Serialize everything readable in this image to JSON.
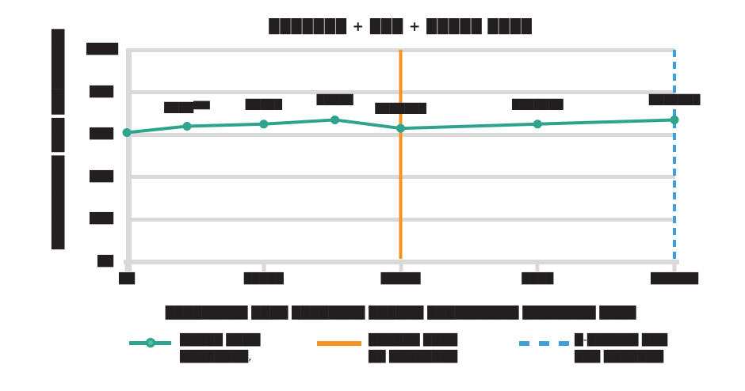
{
  "title": "███████ + ███ + █████ ████",
  "colors": {
    "teal": "#2ea48e",
    "orange": "#f6921e",
    "blue": "#3e9fdb",
    "text": "#231f20",
    "grid": "#d9d9d9"
  },
  "y_axis": {
    "label": "███████████ ████ ██████████",
    "tick_values": [
      100,
      80,
      60,
      40,
      20,
      0
    ],
    "tick_labels": [
      "████",
      "███",
      "███",
      "███",
      "███",
      "██"
    ]
  },
  "x_axis": {
    "label": "█████████ ████ ████████ ██████ ██████████ ████████ ████",
    "tick_values": [
      0,
      25,
      50,
      75,
      100
    ],
    "tick_labels": [
      "██",
      "█████",
      "█████",
      "████",
      "██████"
    ]
  },
  "chart_data": {
    "type": "line",
    "xlim": [
      0,
      100
    ],
    "ylim": [
      0,
      100
    ],
    "grid": "horizontal",
    "legend_position": "bottom",
    "series": [
      {
        "name": "█████ ████ ████████",
        "x": [
          0,
          11,
          25,
          38,
          50,
          75,
          100
        ],
        "y": [
          61,
          64,
          65,
          67,
          63,
          65,
          67
        ],
        "marker": "circle"
      }
    ],
    "vlines": [
      {
        "x": 50,
        "color": "orange",
        "style": "solid"
      },
      {
        "x": 100,
        "color": "blue",
        "style": "dashed"
      }
    ],
    "point_labels": [
      {
        "x": 11,
        "text": "████",
        "sup": "███"
      },
      {
        "x": 25,
        "text": "█████",
        "sup": ""
      },
      {
        "x": 38,
        "text": "█████",
        "sup": ""
      },
      {
        "x": 50,
        "text": "███████",
        "sup": ""
      },
      {
        "x": 75,
        "text": "███████",
        "sup": ""
      },
      {
        "x": 100,
        "text": "███████",
        "sup": ""
      }
    ]
  },
  "legend": [
    {
      "swatch": "teal-line-with-circle-marker",
      "line1": "█████ ████",
      "line2": "████████,"
    },
    {
      "swatch": "orange-solid-vertical-line",
      "line1": "██████ ████",
      "line2": "██ ████████"
    },
    {
      "swatch": "blue-dashed-vertical-line",
      "line1": "█-██████ ███",
      "line2": "███ ███████"
    }
  ]
}
